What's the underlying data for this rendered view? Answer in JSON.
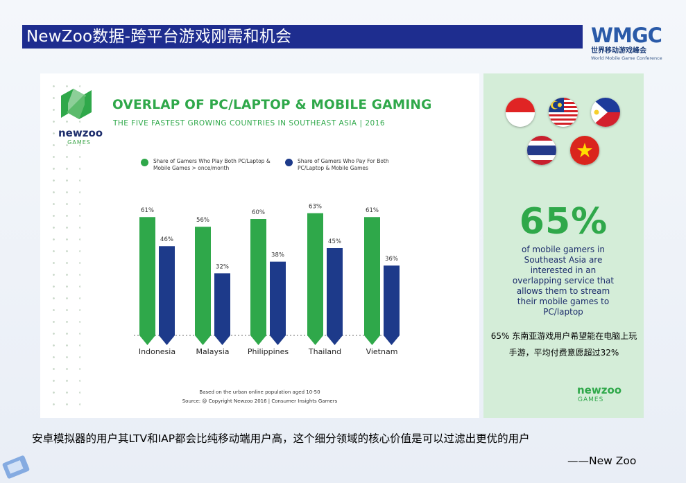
{
  "slide": {
    "title": "NewZoo数据-跨平台游戏刚需和机会",
    "quote": "安卓模拟器的用户其LTV和IAP都会比纯移动端用户高，这个细分领域的核心价值是可以过滤出更优的用户",
    "attribution": "——New Zoo"
  },
  "wmgc": {
    "mark": "WMGC",
    "cn": "世界移动游戏峰会",
    "en": "World Mobile Game Conference"
  },
  "infographic": {
    "brand": "newzoo",
    "games": "GAMES",
    "footnote_1": "Based on the urban online population aged 10-50",
    "footnote_2": "Source: @ Copyright Newzoo 2016 | Consumer Insights Gamers"
  },
  "chart_data": {
    "type": "bar",
    "title": "OVERLAP OF PC/LAPTOP & MOBILE GAMING",
    "subtitle": "THE FIVE FASTEST GROWING COUNTRIES IN SOUTHEAST ASIA | 2016",
    "categories": [
      "Indonesia",
      "Malaysia",
      "Philippines",
      "Thailand",
      "Vietnam"
    ],
    "series": [
      {
        "name": "Share of Gamers Who Play Both PC/Laptop & Mobile Games > once/month",
        "color": "#2fa84a",
        "values": [
          61,
          56,
          60,
          63,
          61
        ],
        "labels": [
          "61%",
          "56%",
          "60%",
          "63%",
          "61%"
        ]
      },
      {
        "name": "Share of Gamers Who Pay For Both PC/Laptop & Mobile Games",
        "color": "#1d3a8a",
        "values": [
          46,
          32,
          38,
          45,
          36
        ],
        "labels": [
          "46%",
          "32%",
          "38%",
          "45%",
          "36%"
        ]
      }
    ],
    "ylim": [
      0,
      100
    ],
    "grid": false,
    "legend_position": "top"
  },
  "stat_panel": {
    "big_pct": "65%",
    "desc": "of mobile gamers in Southeast Asia are interested in an overlapping service that allows them to stream their mobile games to PC/laptop",
    "cn_note": "65% 东南亚游戏用户希望能在电脑上玩手游，平均付费意愿超过32%",
    "brand": "newzoo",
    "games": "GAMES",
    "flags": [
      "indonesia-flag-icon",
      "malaysia-flag-icon",
      "philippines-flag-icon",
      "thailand-flag-icon",
      "vietnam-flag-icon"
    ]
  }
}
